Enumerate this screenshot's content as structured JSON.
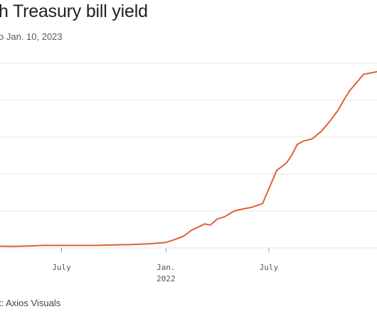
{
  "header": {
    "title": "h Treasury bill yield",
    "subtitle": "o Jan. 10, 2023"
  },
  "footer": {
    "source": "t: Axios Visuals"
  },
  "colors": {
    "line": "#e0603a",
    "grid": "#e6e6e6",
    "text": "#555555"
  },
  "chart_data": {
    "type": "line",
    "title": "h Treasury bill yield",
    "subtitle": "o Jan. 10, 2023",
    "xlabel": "",
    "ylabel": "",
    "grid": true,
    "xlim": [
      "2021-01-01",
      "2023-01-10"
    ],
    "ylim": [
      0,
      5
    ],
    "x_ticks": [
      {
        "date": "2021-07-01",
        "label": "July"
      },
      {
        "date": "2022-01-01",
        "label": "Jan.",
        "sublabel": "2022"
      },
      {
        "date": "2022-07-01",
        "label": "July"
      }
    ],
    "y_gridlines": [
      0,
      1,
      2,
      3,
      4,
      5
    ],
    "series": [
      {
        "x": [
          "2021-01-01",
          "2021-02-01",
          "2021-03-01",
          "2021-04-01",
          "2021-05-01",
          "2021-06-01",
          "2021-07-01",
          "2021-08-01",
          "2021-09-01",
          "2021-10-01",
          "2021-11-01",
          "2021-12-01",
          "2022-01-01",
          "2022-01-15",
          "2022-02-01",
          "2022-02-15",
          "2022-03-01",
          "2022-03-10",
          "2022-03-20",
          "2022-04-01",
          "2022-04-15",
          "2022-05-01",
          "2022-05-15",
          "2022-06-01",
          "2022-06-10",
          "2022-06-20",
          "2022-07-01",
          "2022-07-15",
          "2022-08-01",
          "2022-08-10",
          "2022-08-20",
          "2022-09-01",
          "2022-09-15",
          "2022-10-01",
          "2022-10-15",
          "2022-11-01",
          "2022-11-10",
          "2022-11-20",
          "2022-12-01",
          "2022-12-15",
          "2023-01-01",
          "2023-01-10"
        ],
        "values": [
          0.07,
          0.06,
          0.05,
          0.04,
          0.05,
          0.07,
          0.07,
          0.07,
          0.07,
          0.08,
          0.09,
          0.11,
          0.15,
          0.22,
          0.32,
          0.48,
          0.58,
          0.65,
          0.62,
          0.78,
          0.85,
          1.0,
          1.05,
          1.1,
          1.15,
          1.2,
          1.6,
          2.1,
          2.3,
          2.5,
          2.8,
          2.9,
          2.95,
          3.15,
          3.4,
          3.75,
          4.0,
          4.25,
          4.45,
          4.7,
          4.75,
          4.78
        ]
      }
    ]
  }
}
